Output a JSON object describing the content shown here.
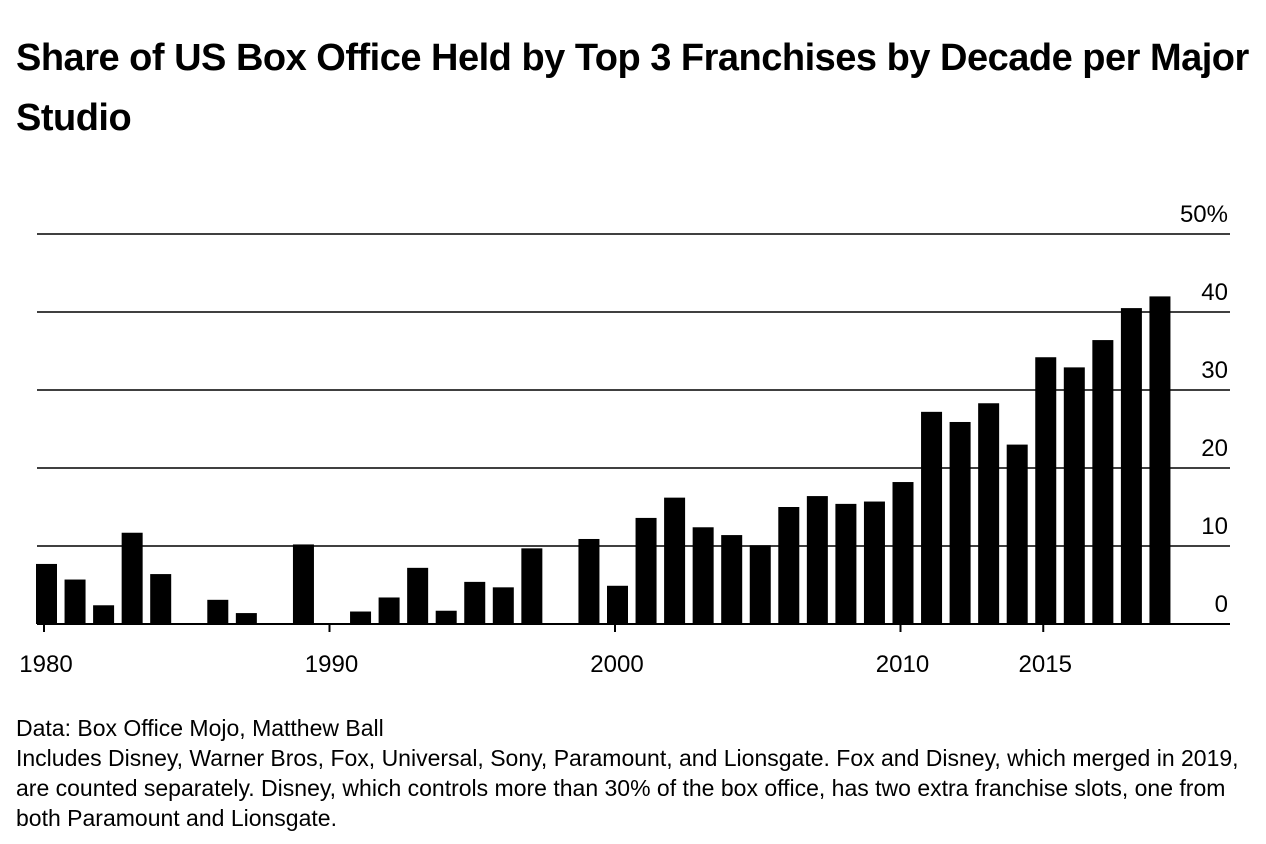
{
  "chart_data": {
    "type": "bar",
    "title": "Share of US Box Office Held by Top 3 Franchises by Decade per Major Studio",
    "xlabel": "",
    "ylabel": "",
    "x_range": [
      1980,
      2021
    ],
    "ylim": [
      0,
      50
    ],
    "y_ticks": [
      0,
      10,
      20,
      30,
      40,
      50
    ],
    "y_tick_labels": [
      "0",
      "10",
      "20",
      "30",
      "40",
      "50%"
    ],
    "x_ticks": [
      1980,
      1990,
      2000,
      2010,
      2015
    ],
    "x_tick_labels": [
      "1980",
      "1990",
      "2000",
      "2010",
      "2015"
    ],
    "grid": true,
    "legend": "none",
    "bar_color": "#000000",
    "x": [
      1980,
      1981,
      1982,
      1983,
      1984,
      1985,
      1986,
      1987,
      1988,
      1989,
      1990,
      1991,
      1992,
      1993,
      1994,
      1995,
      1996,
      1997,
      1998,
      1999,
      2000,
      2001,
      2002,
      2003,
      2004,
      2005,
      2006,
      2007,
      2008,
      2009,
      2010,
      2011,
      2012,
      2013,
      2014,
      2015,
      2016,
      2017,
      2018,
      2019,
      2020
    ],
    "values": [
      7.7,
      5.7,
      2.4,
      11.7,
      6.4,
      0,
      3.1,
      1.4,
      0,
      10.2,
      0,
      1.6,
      3.4,
      7.2,
      1.7,
      5.4,
      4.7,
      9.7,
      0,
      10.9,
      4.9,
      13.6,
      16.2,
      12.4,
      11.4,
      10.1,
      15.0,
      16.4,
      15.4,
      15.7,
      18.2,
      27.2,
      25.9,
      28.3,
      23.0,
      34.2,
      32.9,
      36.4,
      40.5,
      42.0,
      0
    ]
  },
  "notes": {
    "source": "Data: Box Office Mojo, Matthew Ball",
    "description": "Includes Disney, Warner Bros, Fox, Universal, Sony, Paramount, and Lionsgate. Fox and Disney, which merged in 2019, are counted separately. Disney, which controls more than 30% of the box office, has two extra franchise slots, one from both Paramount and Lionsgate."
  }
}
